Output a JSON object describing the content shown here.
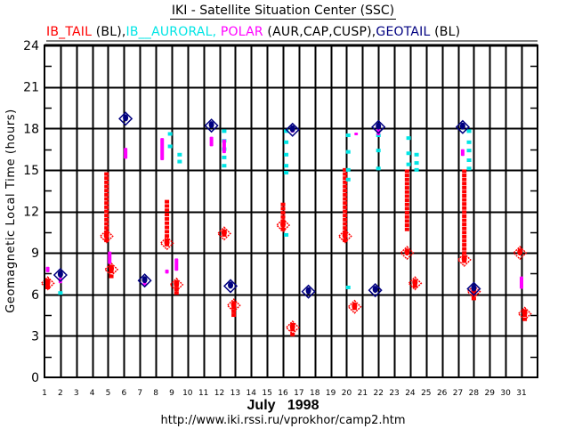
{
  "chart_data": {
    "type": "scatter",
    "title": "IKI - Satellite Situation Center (SSC)",
    "legend": [
      {
        "text": "IB_TAIL",
        "color": "#ff0000"
      },
      {
        "text": " (BL),",
        "color": "#000000"
      },
      {
        "text": "IB__AURORAL, ",
        "color": "#00e5e5"
      },
      {
        "text": "POLAR",
        "color": "#ff00ff"
      },
      {
        "text": " (AUR,CAP,CUSP),",
        "color": "#000000"
      },
      {
        "text": "GEOTAIL",
        "color": "#000080"
      },
      {
        "text": " (BL)",
        "color": "#000000"
      }
    ],
    "legend_placement": "top",
    "ylabel": "Geomagnetic Local Time (hours)",
    "xlabel": "July   1998",
    "footer": "http://www.iki.rssi.ru/vprokhor/camp2.htm",
    "xlim": [
      1,
      31
    ],
    "ylim": [
      0,
      24
    ],
    "x_ticks": [
      "1",
      "2",
      "3",
      "4",
      "5",
      "6",
      "7",
      "8",
      "9",
      "10",
      "11",
      "12",
      "13",
      "14",
      "15",
      "16",
      "17",
      "18",
      "19",
      "20",
      "21",
      "22",
      "23",
      "24",
      "25",
      "26",
      "27",
      "28",
      "29",
      "30",
      "31"
    ],
    "y_ticks": [
      "0",
      "3",
      "6",
      "9",
      "12",
      "15",
      "18",
      "21",
      "24"
    ],
    "grid": true,
    "series": [
      {
        "name": "IB_TAIL",
        "color": "#ff0000",
        "segments": [
          {
            "x": 1.2,
            "y0": 6.5,
            "y1": 7.0
          },
          {
            "x": 4.9,
            "y0": 9.9,
            "y1": 14.7
          },
          {
            "x": 5.2,
            "y0": 7.3,
            "y1": 8.0
          },
          {
            "x": 8.7,
            "y0": 9.6,
            "y1": 12.7
          },
          {
            "x": 9.3,
            "y0": 6.1,
            "y1": 6.9
          },
          {
            "x": 12.3,
            "y0": 10.3,
            "y1": 10.5
          },
          {
            "x": 12.9,
            "y0": 4.5,
            "y1": 5.3
          },
          {
            "x": 16.0,
            "y0": 10.7,
            "y1": 12.5
          },
          {
            "x": 16.6,
            "y0": 3.1,
            "y1": 3.8
          },
          {
            "x": 19.9,
            "y0": 9.9,
            "y1": 15.0
          },
          {
            "x": 20.5,
            "y0": 5.0,
            "y1": 5.2
          },
          {
            "x": 23.8,
            "y0": 10.7,
            "y1": 14.9
          },
          {
            "x": 24.3,
            "y0": 6.6,
            "y1": 6.9
          },
          {
            "x": 27.4,
            "y0": 8.4,
            "y1": 14.9
          },
          {
            "x": 28.0,
            "y0": 5.7,
            "y1": 6.3
          },
          {
            "x": 31.2,
            "y0": 4.2,
            "y1": 4.8
          }
        ],
        "markers": [
          {
            "x": 1.2,
            "y": 6.8
          },
          {
            "x": 4.9,
            "y": 10.2
          },
          {
            "x": 5.2,
            "y": 7.8
          },
          {
            "x": 8.7,
            "y": 9.7
          },
          {
            "x": 9.3,
            "y": 6.7
          },
          {
            "x": 12.3,
            "y": 10.4
          },
          {
            "x": 12.9,
            "y": 5.2
          },
          {
            "x": 16.0,
            "y": 11.0
          },
          {
            "x": 16.6,
            "y": 3.6
          },
          {
            "x": 19.9,
            "y": 10.2
          },
          {
            "x": 20.5,
            "y": 5.1
          },
          {
            "x": 23.8,
            "y": 9.0
          },
          {
            "x": 24.3,
            "y": 6.8
          },
          {
            "x": 27.4,
            "y": 8.5
          },
          {
            "x": 28.0,
            "y": 6.2
          },
          {
            "x": 30.9,
            "y": 9.0
          },
          {
            "x": 31.2,
            "y": 4.6
          }
        ]
      },
      {
        "name": "IB__AURORAL",
        "color": "#00e5e5",
        "points": [
          [
            2.0,
            6.1
          ],
          [
            8.9,
            17.6
          ],
          [
            8.9,
            16.7
          ],
          [
            9.5,
            16.1
          ],
          [
            9.5,
            15.6
          ],
          [
            12.3,
            17.8
          ],
          [
            12.3,
            17.1
          ],
          [
            12.3,
            16.5
          ],
          [
            12.3,
            15.9
          ],
          [
            12.3,
            15.3
          ],
          [
            16.2,
            17.8
          ],
          [
            16.2,
            17.0
          ],
          [
            16.2,
            16.1
          ],
          [
            16.2,
            15.3
          ],
          [
            16.2,
            14.8
          ],
          [
            16.2,
            10.3
          ],
          [
            20.1,
            17.5
          ],
          [
            20.1,
            16.3
          ],
          [
            20.1,
            15.0
          ],
          [
            20.1,
            14.3
          ],
          [
            20.1,
            6.5
          ],
          [
            22.0,
            17.5
          ],
          [
            22.0,
            16.4
          ],
          [
            22.0,
            15.1
          ],
          [
            23.9,
            17.3
          ],
          [
            23.9,
            16.2
          ],
          [
            23.9,
            15.4
          ],
          [
            24.4,
            16.1
          ],
          [
            24.4,
            15.5
          ],
          [
            24.4,
            15.0
          ],
          [
            27.7,
            17.8
          ],
          [
            27.7,
            17.0
          ],
          [
            27.7,
            16.4
          ],
          [
            27.7,
            15.7
          ],
          [
            27.7,
            15.1
          ]
        ]
      },
      {
        "name": "POLAR",
        "color": "#ff00ff",
        "segments": [
          {
            "x": 1.2,
            "y0": 7.7,
            "y1": 7.9
          },
          {
            "x": 2.0,
            "y0": 6.9,
            "y1": 7.1
          },
          {
            "x": 5.1,
            "y0": 8.3,
            "y1": 9.0
          },
          {
            "x": 6.1,
            "y0": 15.9,
            "y1": 16.5
          },
          {
            "x": 7.3,
            "y0": 6.7,
            "y1": 6.9
          },
          {
            "x": 8.4,
            "y0": 15.8,
            "y1": 17.2
          },
          {
            "x": 8.7,
            "y0": 7.6,
            "y1": 7.7
          },
          {
            "x": 9.3,
            "y0": 7.8,
            "y1": 8.5
          },
          {
            "x": 11.5,
            "y0": 16.8,
            "y1": 17.3
          },
          {
            "x": 12.3,
            "y0": 16.3,
            "y1": 17.1
          },
          {
            "x": 16.6,
            "y0": 17.8,
            "y1": 18.0
          },
          {
            "x": 20.6,
            "y0": 17.6,
            "y1": 17.6
          },
          {
            "x": 22.0,
            "y0": 17.6,
            "y1": 18.0
          },
          {
            "x": 27.3,
            "y0": 16.1,
            "y1": 16.4
          },
          {
            "x": 31.0,
            "y0": 6.5,
            "y1": 7.2
          }
        ]
      },
      {
        "name": "GEOTAIL",
        "color": "#000080",
        "markers": [
          {
            "x": 2.0,
            "y": 7.4
          },
          {
            "x": 6.1,
            "y": 18.7
          },
          {
            "x": 7.3,
            "y": 7.0
          },
          {
            "x": 11.5,
            "y": 18.2
          },
          {
            "x": 12.7,
            "y": 6.6
          },
          {
            "x": 16.6,
            "y": 17.9
          },
          {
            "x": 17.6,
            "y": 6.2
          },
          {
            "x": 21.8,
            "y": 6.3
          },
          {
            "x": 22.0,
            "y": 18.1
          },
          {
            "x": 27.3,
            "y": 18.1
          },
          {
            "x": 28.0,
            "y": 6.4
          }
        ]
      }
    ]
  }
}
